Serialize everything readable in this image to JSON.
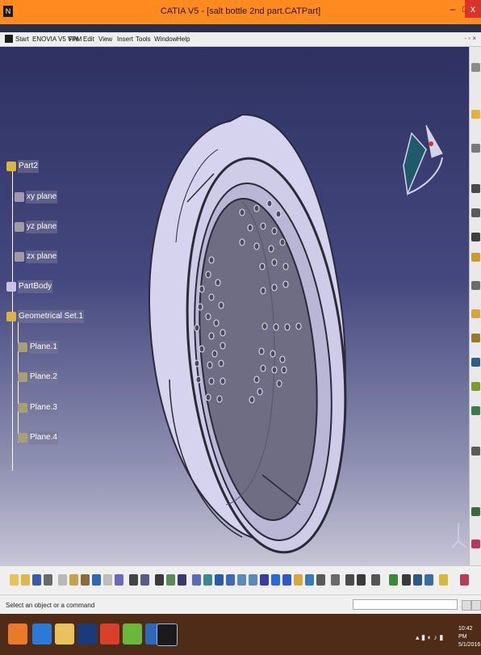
{
  "window": {
    "title": "CATIA V5 - [salt bottle 2nd part.CATPart]",
    "app_icon_glyph": "N",
    "minimize": "–",
    "maximize": "□",
    "close": "x"
  },
  "menu": {
    "items": [
      "Start",
      "ENOVIA V5 VPM",
      "File",
      "Edit",
      "View",
      "Insert",
      "Tools",
      "Window",
      "Help"
    ],
    "mdi_buttons": "- ▫ ×"
  },
  "tree": {
    "nodes": [
      {
        "label": "Part2",
        "icon": "part-icon"
      },
      {
        "label": "xy plane",
        "icon": "plane-icon"
      },
      {
        "label": "yz plane",
        "icon": "plane-icon"
      },
      {
        "label": "zx plane",
        "icon": "plane-icon"
      },
      {
        "label": "PartBody",
        "icon": "body-icon"
      },
      {
        "label": "Geometrical Set.1",
        "icon": "geometrical-set-icon"
      },
      {
        "label": "Plane.1",
        "icon": "plane-icon"
      },
      {
        "label": "Plane.2",
        "icon": "plane-icon"
      },
      {
        "label": "Plane.3",
        "icon": "plane-icon"
      },
      {
        "label": "Plane.4",
        "icon": "plane-icon"
      }
    ]
  },
  "statusbar": {
    "message": "Select an object or a command",
    "command_value": ""
  },
  "taskbar": {
    "apps": [
      "windows-start-icon",
      "internet-explorer-icon",
      "file-explorer-icon",
      "photoshop-icon",
      "chrome-icon",
      "utorrent-icon",
      "catia-doc-icon",
      "catia-app-icon"
    ],
    "clock_time": "10:42 PM",
    "clock_date": "5/1/2016"
  },
  "colors": {
    "titlebar": "#ff8a1f",
    "close_button": "#d9342b",
    "viewport_top": "#2e3162",
    "viewport_bottom": "#c7c5d6",
    "part_fill": "#d6d3ef",
    "part_inner": "#6f6d83",
    "taskbar": "#4f2c18"
  }
}
